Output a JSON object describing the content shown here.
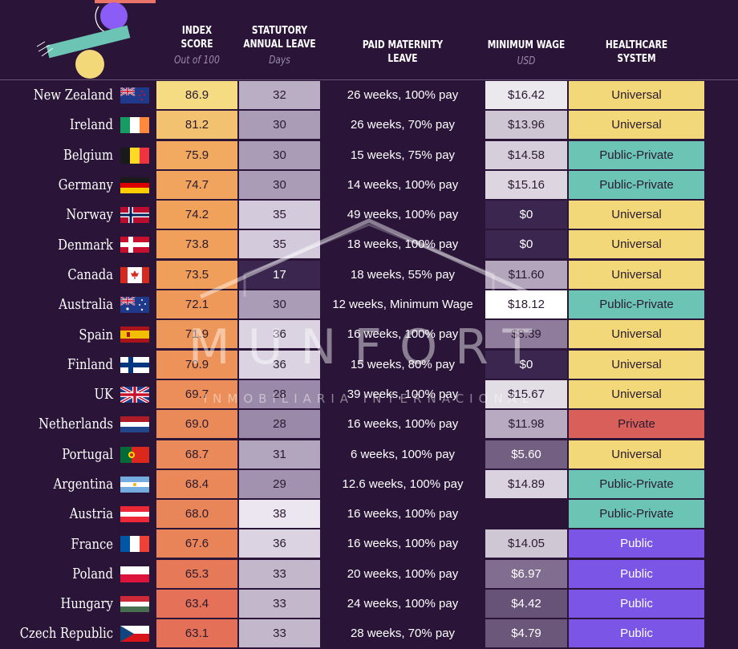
{
  "headers": {
    "index": {
      "line1": "INDEX",
      "line2": "SCORE",
      "sub": "Out of 100"
    },
    "leave": {
      "line1": "STATUTORY",
      "line2": "ANNUAL LEAVE",
      "sub": "Days"
    },
    "maternity": {
      "line1": "PAID MATERNITY",
      "line2": "LEAVE"
    },
    "wage": {
      "line1": "MINIMUM WAGE",
      "sub": "USD"
    },
    "health": {
      "line1": "HEALTHCARE",
      "line2": "SYSTEM"
    }
  },
  "watermark": {
    "brand": "MUNFORT",
    "tagline": "INMOBILIARIA INTERNACIONAL"
  },
  "chart_data": {
    "type": "table",
    "columns": [
      "INDEX SCORE",
      "STATUTORY ANNUAL LEAVE",
      "PAID MATERNITY LEAVE",
      "MINIMUM WAGE",
      "HEALTHCARE SYSTEM"
    ],
    "rows": [
      {
        "country": "New Zealand",
        "flag": "new-zealand",
        "index": "86.9",
        "leave": "32",
        "maternity": "26 weeks, 100% pay",
        "wage": "$16.42",
        "health": "Universal"
      },
      {
        "country": "Ireland",
        "flag": "ireland",
        "index": "81.2",
        "leave": "30",
        "maternity": "26 weeks, 70% pay",
        "wage": "$13.96",
        "health": "Universal"
      },
      {
        "country": "Belgium",
        "flag": "belgium",
        "index": "75.9",
        "leave": "30",
        "maternity": "15 weeks, 75% pay",
        "wage": "$14.58",
        "health": "Public-Private"
      },
      {
        "country": "Germany",
        "flag": "germany",
        "index": "74.7",
        "leave": "30",
        "maternity": "14 weeks, 100% pay",
        "wage": "$15.16",
        "health": "Public-Private"
      },
      {
        "country": "Norway",
        "flag": "norway",
        "index": "74.2",
        "leave": "35",
        "maternity": "49 weeks, 100% pay",
        "wage": "$0",
        "health": "Universal"
      },
      {
        "country": "Denmark",
        "flag": "denmark",
        "index": "73.8",
        "leave": "35",
        "maternity": "18 weeks, 100% pay",
        "wage": "$0",
        "health": "Universal"
      },
      {
        "country": "Canada",
        "flag": "canada",
        "index": "73.5",
        "leave": "17",
        "maternity": "18 weeks, 55% pay",
        "wage": "$11.60",
        "health": "Universal"
      },
      {
        "country": "Australia",
        "flag": "australia",
        "index": "72.1",
        "leave": "30",
        "maternity": "12 weeks, Minimum Wage",
        "wage": "$18.12",
        "health": "Public-Private"
      },
      {
        "country": "Spain",
        "flag": "spain",
        "index": "71.9",
        "leave": "36",
        "maternity": "16 weeks, 100% pay",
        "wage": "$8.39",
        "health": "Universal"
      },
      {
        "country": "Finland",
        "flag": "finland",
        "index": "70.9",
        "leave": "36",
        "maternity": "15 weeks, 80% pay",
        "wage": "$0",
        "health": "Universal"
      },
      {
        "country": "UK",
        "flag": "uk",
        "index": "69.7",
        "leave": "28",
        "maternity": "39 weeks, 100% pay",
        "wage": "$15.67",
        "health": "Universal"
      },
      {
        "country": "Netherlands",
        "flag": "netherlands",
        "index": "69.0",
        "leave": "28",
        "maternity": "16 weeks, 100% pay",
        "wage": "$11.98",
        "health": "Private"
      },
      {
        "country": "Portugal",
        "flag": "portugal",
        "index": "68.7",
        "leave": "31",
        "maternity": "6 weeks, 100% pay",
        "wage": "$5.60",
        "health": "Universal"
      },
      {
        "country": "Argentina",
        "flag": "argentina",
        "index": "68.4",
        "leave": "29",
        "maternity": "12.6 weeks, 100% pay",
        "wage": "$14.89",
        "health": "Public-Private"
      },
      {
        "country": "Austria",
        "flag": "austria",
        "index": "68.0",
        "leave": "38",
        "maternity": "16 weeks, 100% pay",
        "wage": "-",
        "health": "Public-Private"
      },
      {
        "country": "France",
        "flag": "france",
        "index": "67.6",
        "leave": "36",
        "maternity": "16 weeks, 100% pay",
        "wage": "$14.05",
        "health": "Public"
      },
      {
        "country": "Poland",
        "flag": "poland",
        "index": "65.3",
        "leave": "33",
        "maternity": "20 weeks, 100% pay",
        "wage": "$6.97",
        "health": "Public"
      },
      {
        "country": "Hungary",
        "flag": "hungary",
        "index": "63.4",
        "leave": "33",
        "maternity": "24 weeks, 100% pay",
        "wage": "$4.42",
        "health": "Public"
      },
      {
        "country": "Czech Republic",
        "flag": "czech-republic",
        "index": "63.1",
        "leave": "33",
        "maternity": "28 weeks, 70% pay",
        "wage": "$4.79",
        "health": "Public"
      }
    ]
  },
  "colors": {
    "background": "#2a1539",
    "Universal": "#f2d878",
    "Public-Private": "#6cc4b4",
    "Private": "#d9605a",
    "Public": "#7a55e6"
  }
}
